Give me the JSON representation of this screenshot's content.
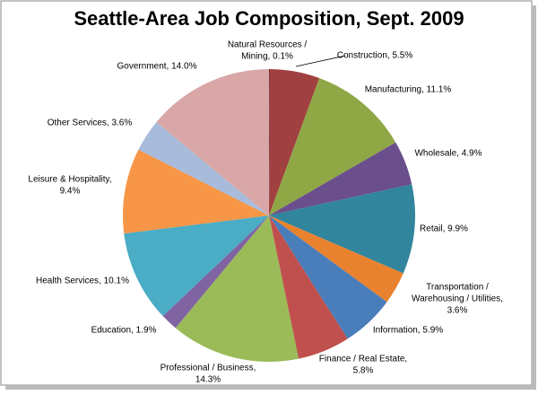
{
  "chart_data": {
    "type": "pie",
    "title": "Seattle-Area Job Composition, Sept. 2009",
    "values": [
      0.1,
      5.5,
      11.1,
      4.9,
      9.9,
      3.6,
      5.9,
      5.8,
      14.3,
      1.9,
      10.1,
      9.4,
      3.6,
      14.0
    ],
    "value_labels": [
      [
        "Natural Resources /",
        "Mining, 0.1%"
      ],
      [
        "Construction, 5.5%"
      ],
      [
        "Manufacturing, 11.1%"
      ],
      [
        "Wholesale, 4.9%"
      ],
      [
        "Retail, 9.9%"
      ],
      [
        "Transportation /",
        "Warehousing / Utilities,",
        "3.6%"
      ],
      [
        "Information, 5.9%"
      ],
      [
        "Finance / Real Estate,",
        "5.8%"
      ],
      [
        "Professional / Business,",
        "14.3%"
      ],
      [
        "Education, 1.9%"
      ],
      [
        "Health Services, 10.1%"
      ],
      [
        "Leisure & Hospitality,",
        "9.4%"
      ],
      [
        "Other Services, 3.6%"
      ],
      [
        "Government, 14.0%"
      ]
    ],
    "colors": [
      "#7a2f2f",
      "#a04040",
      "#8fa745",
      "#6b4e8c",
      "#31859c",
      "#e9822f",
      "#4a7ebb",
      "#c0504d",
      "#9bbb59",
      "#8064a2",
      "#4bacc6",
      "#f79646",
      "#a9bbda",
      "#d9a7a7"
    ]
  }
}
